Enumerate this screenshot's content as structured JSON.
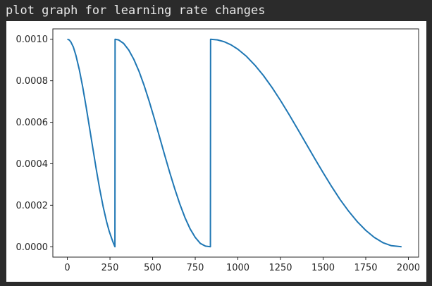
{
  "output": {
    "text": "plot graph for learning rate changes"
  },
  "chart_data": {
    "type": "line",
    "title": "",
    "xlabel": "",
    "ylabel": "",
    "xlim": [
      -85,
      2060
    ],
    "ylim": [
      -5e-05,
      0.00105
    ],
    "x_ticks": [
      0,
      250,
      500,
      750,
      1000,
      1250,
      1500,
      1750,
      2000
    ],
    "x_tick_labels": [
      "0",
      "250",
      "500",
      "750",
      "1000",
      "1250",
      "1500",
      "1750",
      "2000"
    ],
    "y_ticks": [
      0.0,
      0.0002,
      0.0004,
      0.0006,
      0.0008,
      0.001
    ],
    "y_tick_labels": [
      "0.0000",
      "0.0002",
      "0.0004",
      "0.0006",
      "0.0008",
      "0.0010"
    ],
    "grid": false,
    "legend": "none",
    "series": [
      {
        "color": "#1f77b4",
        "points": [
          [
            0,
            0.001
          ],
          [
            10,
            0.000997
          ],
          [
            20,
            0.000988
          ],
          [
            35,
            0.000963
          ],
          [
            50,
            0.000923
          ],
          [
            70,
            0.000854
          ],
          [
            90,
            0.00077
          ],
          [
            110,
            0.000675
          ],
          [
            130,
            0.000574
          ],
          [
            150,
            0.000472
          ],
          [
            170,
            0.000371
          ],
          [
            190,
            0.000277
          ],
          [
            210,
            0.000193
          ],
          [
            230,
            0.000121
          ],
          [
            245,
            7.6e-05
          ],
          [
            260,
            4e-05
          ],
          [
            270,
            1.8e-05
          ],
          [
            279,
            0.0
          ],
          [
            280,
            0.001
          ],
          [
            300,
            0.000997
          ],
          [
            330,
            0.00098
          ],
          [
            360,
            0.000948
          ],
          [
            390,
            0.000903
          ],
          [
            420,
            0.000846
          ],
          [
            450,
            0.000778
          ],
          [
            480,
            0.000701
          ],
          [
            510,
            0.000618
          ],
          [
            540,
            0.000531
          ],
          [
            570,
            0.000444
          ],
          [
            600,
            0.000359
          ],
          [
            630,
            0.000279
          ],
          [
            660,
            0.000205
          ],
          [
            690,
            0.00014
          ],
          [
            720,
            8.6e-05
          ],
          [
            750,
            4.5e-05
          ],
          [
            780,
            1.6e-05
          ],
          [
            810,
            3e-06
          ],
          [
            839,
            0.0
          ],
          [
            840,
            0.001
          ],
          [
            880,
            0.000997
          ],
          [
            920,
            0.000988
          ],
          [
            960,
            0.000973
          ],
          [
            1000,
            0.000952
          ],
          [
            1050,
            0.000918
          ],
          [
            1100,
            0.000875
          ],
          [
            1150,
            0.000825
          ],
          [
            1200,
            0.000768
          ],
          [
            1250,
            0.000705
          ],
          [
            1300,
            0.000638
          ],
          [
            1350,
            0.000568
          ],
          [
            1400,
            0.000497
          ],
          [
            1450,
            0.000426
          ],
          [
            1500,
            0.000357
          ],
          [
            1550,
            0.00029
          ],
          [
            1600,
            0.000227
          ],
          [
            1650,
            0.000171
          ],
          [
            1700,
            0.000121
          ],
          [
            1750,
            7.9e-05
          ],
          [
            1800,
            4.5e-05
          ],
          [
            1850,
            2e-05
          ],
          [
            1900,
            5e-06
          ],
          [
            1960,
            0.0
          ]
        ]
      }
    ]
  }
}
